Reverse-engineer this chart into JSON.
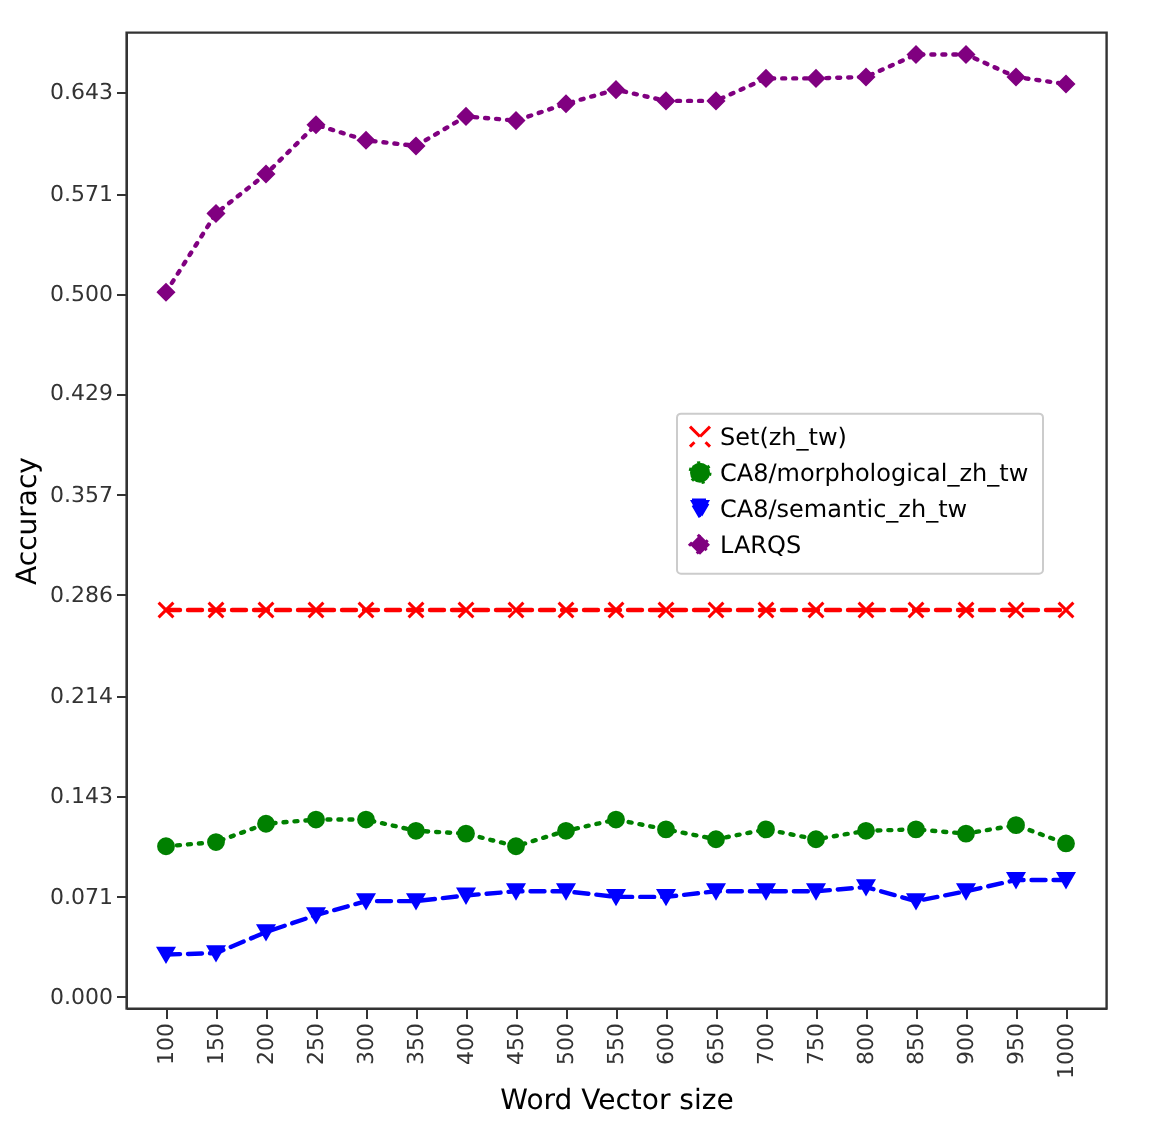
{
  "chart_data": {
    "type": "line",
    "xlabel": "Word Vector size",
    "ylabel": "Accuracy",
    "categories": [
      "100",
      "150",
      "200",
      "250",
      "300",
      "350",
      "400",
      "450",
      "500",
      "550",
      "600",
      "650",
      "700",
      "750",
      "800",
      "850",
      "900",
      "950",
      "1000"
    ],
    "ylim": [
      -0.008,
      0.686
    ],
    "yticks": [
      {
        "value": 0,
        "label": "0.000"
      },
      0.071,
      0.143,
      0.214,
      0.286,
      0.357,
      0.429,
      {
        "value": 0.5,
        "label": "0.500"
      },
      0.571,
      0.643
    ],
    "grid": false,
    "legend": "right",
    "series": [
      {
        "name": "Set(zh_tw)",
        "color": "#ff0000",
        "marker": "cross",
        "line_style": "dashed",
        "values": [
          0.275,
          0.275,
          0.275,
          0.275,
          0.275,
          0.275,
          0.275,
          0.275,
          0.275,
          0.275,
          0.275,
          0.275,
          0.275,
          0.275,
          0.275,
          0.275,
          0.275,
          0.275,
          0.275
        ]
      },
      {
        "name": "CA8/morphological_zh_tw",
        "color": "#008000",
        "marker": "circle",
        "line_style": "dotted",
        "values": [
          0.107,
          0.11,
          0.123,
          0.126,
          0.126,
          0.118,
          0.116,
          0.107,
          0.118,
          0.126,
          0.119,
          0.112,
          0.119,
          0.112,
          0.118,
          0.119,
          0.116,
          0.122,
          0.109
        ]
      },
      {
        "name": "CA8/semantic_zh_tw",
        "color": "#0000ff",
        "marker": "triangle",
        "line_style": "dashed",
        "values": [
          0.03,
          0.031,
          0.046,
          0.058,
          0.068,
          0.068,
          0.072,
          0.075,
          0.075,
          0.071,
          0.071,
          0.075,
          0.075,
          0.075,
          0.078,
          0.068,
          0.075,
          0.083,
          0.083
        ]
      },
      {
        "name": "LARQS",
        "color": "#800080",
        "marker": "diamond",
        "line_style": "dotted",
        "values": [
          0.501,
          0.557,
          0.585,
          0.62,
          0.609,
          0.605,
          0.626,
          0.623,
          0.635,
          0.645,
          0.637,
          0.637,
          0.653,
          0.653,
          0.654,
          0.67,
          0.67,
          0.654,
          0.649
        ]
      }
    ]
  }
}
